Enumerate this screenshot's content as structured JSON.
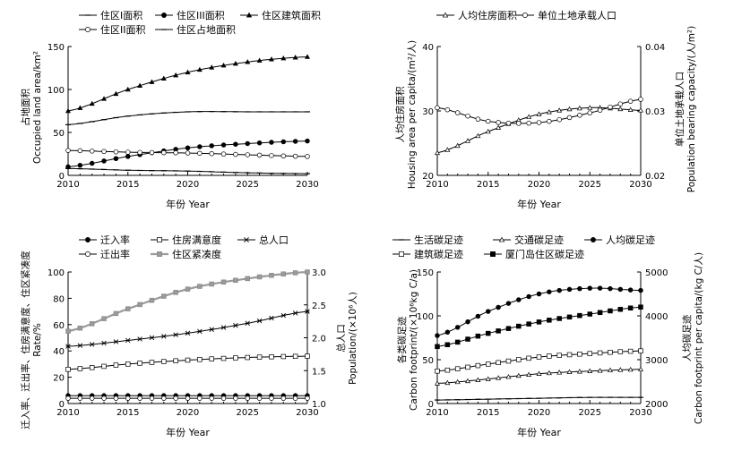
{
  "chart_data": [
    {
      "type": "line",
      "panel": "a",
      "title": "",
      "legend": [
        "住区I面积",
        "住区III面积",
        "住区建筑面积",
        "住区II面积",
        "住区占地面积"
      ],
      "legend_placement": "top",
      "xlabel": "年份 Year",
      "ylabel": [
        "占地面积",
        "Occupied land area/km²"
      ],
      "x": [
        2010,
        2015,
        2020,
        2025,
        2030
      ],
      "xlim": [
        2010,
        2030
      ],
      "ylim": [
        0,
        150
      ],
      "xticks": [
        "2010",
        "2015",
        "2020",
        "2025",
        "2030"
      ],
      "yticks": [
        "0",
        "50",
        "100",
        "150"
      ],
      "series": [
        {
          "name": "住区I面积",
          "marker": "dash",
          "values": [
            8,
            6,
            5,
            3,
            2
          ]
        },
        {
          "name": "住区III面积",
          "marker": "filled-circle",
          "values": [
            10,
            22,
            32,
            37,
            40
          ]
        },
        {
          "name": "住区建筑面积",
          "marker": "filled-triangle",
          "values": [
            75,
            100,
            120,
            132,
            138
          ]
        },
        {
          "name": "住区II面积",
          "marker": "open-circle",
          "values": [
            29,
            27,
            26,
            24,
            22
          ]
        },
        {
          "name": "住区占地面积",
          "marker": "dash",
          "values": [
            59,
            69,
            74,
            74,
            74
          ]
        }
      ]
    },
    {
      "type": "line",
      "panel": "b",
      "title": "",
      "legend": [
        "人均住房面积",
        "单位土地承载人口"
      ],
      "legend_placement": "top",
      "xlabel": "年份 Year",
      "ylabel": [
        "人均住房面积",
        "Housing area per capita/(m²/人)"
      ],
      "y2label": [
        "单位土地承载人口",
        "Population bearing capacity/(人/m²)"
      ],
      "x": [
        2010,
        2015,
        2020,
        2025,
        2030
      ],
      "xlim": [
        2010,
        2030
      ],
      "ylim": [
        20,
        40
      ],
      "y2lim": [
        0.02,
        0.04
      ],
      "xticks": [
        "2010",
        "2015",
        "2020",
        "2025",
        "2030"
      ],
      "yticks": [
        "20",
        "30",
        "40"
      ],
      "y2ticks": [
        "0.02",
        "0.03",
        "0.04"
      ],
      "series": [
        {
          "name": "人均住房面积",
          "axis": "left",
          "marker": "open-triangle",
          "values": [
            23.5,
            26.8,
            29.5,
            30.5,
            30.1
          ]
        },
        {
          "name": "单位土地承载人口",
          "axis": "right",
          "marker": "open-circle",
          "values": [
            0.0305,
            0.0284,
            0.0282,
            0.0297,
            0.0318
          ]
        }
      ]
    },
    {
      "type": "line",
      "panel": "c",
      "title": "",
      "legend": [
        "迁入率",
        "住房满意度",
        "总人口",
        "迁出率",
        "住区紧凑度"
      ],
      "legend_placement": "top",
      "xlabel": "年份 Year",
      "ylabel": [
        "迁入率、迁出率、住房满意度、住区紧凑度",
        "Rate/%"
      ],
      "y2label": [
        "总人口",
        "Population/(×10⁶人)"
      ],
      "x": [
        2010,
        2015,
        2020,
        2025,
        2030
      ],
      "xlim": [
        2010,
        2030
      ],
      "ylim": [
        0,
        100
      ],
      "y2lim": [
        1.0,
        3.0
      ],
      "xticks": [
        "2010",
        "2015",
        "2020",
        "2025",
        "2030"
      ],
      "yticks": [
        "0",
        "20",
        "40",
        "60",
        "80",
        "100"
      ],
      "y2ticks": [
        "1.0",
        "1.5",
        "2.0",
        "2.5",
        "3.0"
      ],
      "series": [
        {
          "name": "迁入率",
          "axis": "left",
          "marker": "filled-circle",
          "values": [
            6,
            6,
            6,
            6,
            6
          ]
        },
        {
          "name": "住房满意度",
          "axis": "left",
          "marker": "open-square",
          "values": [
            26,
            30,
            33,
            35,
            36
          ]
        },
        {
          "name": "总人口",
          "axis": "right",
          "marker": "asterisk",
          "values": [
            1.87,
            1.96,
            2.07,
            2.22,
            2.4
          ]
        },
        {
          "name": "迁出率",
          "axis": "left",
          "marker": "open-circle",
          "values": [
            4,
            4,
            4,
            4,
            4
          ]
        },
        {
          "name": "住区紧凑度",
          "axis": "left",
          "marker": "gray-square",
          "values": [
            55,
            72,
            87,
            95,
            100
          ]
        }
      ]
    },
    {
      "type": "line",
      "panel": "d",
      "title": "",
      "legend": [
        "生活碳足迹",
        "交通碳足迹",
        "人均碳足迹",
        "建筑碳足迹",
        "厦门岛住区碳足迹"
      ],
      "legend_placement": "top",
      "xlabel": "年份 Year",
      "ylabel": [
        "各类碳足迹",
        "Carbon footprint/(×10⁶kg C/a)"
      ],
      "y2label": [
        "人均碳足迹",
        "Carbon footprint per capita/(kg C/人)"
      ],
      "x": [
        2010,
        2015,
        2020,
        2025,
        2030
      ],
      "xlim": [
        2010,
        2030
      ],
      "ylim": [
        0,
        150
      ],
      "y2lim": [
        2000,
        5000
      ],
      "xticks": [
        "2010",
        "2015",
        "2020",
        "2025",
        "2030"
      ],
      "yticks": [
        "0",
        "50",
        "100",
        "150"
      ],
      "y2ticks": [
        "2000",
        "3000",
        "4000",
        "5000"
      ],
      "series": [
        {
          "name": "生活碳足迹",
          "axis": "left",
          "marker": "dash",
          "values": [
            4,
            5,
            6,
            7,
            7
          ]
        },
        {
          "name": "交通碳足迹",
          "axis": "left",
          "marker": "open-triangle",
          "values": [
            23,
            28,
            34,
            37,
            39
          ]
        },
        {
          "name": "人均碳足迹",
          "axis": "right",
          "marker": "filled-circle",
          "values": [
            3550,
            4100,
            4500,
            4630,
            4580
          ]
        },
        {
          "name": "建筑碳足迹",
          "axis": "left",
          "marker": "open-square",
          "values": [
            37,
            45,
            53,
            57,
            60
          ]
        },
        {
          "name": "厦门岛住区碳足迹",
          "axis": "left",
          "marker": "filled-square",
          "values": [
            65,
            80,
            93,
            102,
            110
          ]
        }
      ]
    }
  ]
}
